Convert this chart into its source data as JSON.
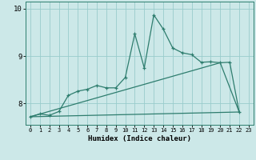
{
  "bg_color": "#cce8e8",
  "grid_color": "#99cccc",
  "line_color": "#2e7d6e",
  "xlim": [
    -0.5,
    23.5
  ],
  "ylim": [
    7.55,
    10.15
  ],
  "xticks": [
    0,
    1,
    2,
    3,
    4,
    5,
    6,
    7,
    8,
    9,
    10,
    11,
    12,
    13,
    14,
    15,
    16,
    17,
    18,
    19,
    20,
    21,
    22,
    23
  ],
  "yticks": [
    8,
    9,
    10
  ],
  "xlabel": "Humidex (Indice chaleur)",
  "line1_x": [
    0,
    1,
    2,
    3,
    4,
    5,
    6,
    7,
    8,
    9,
    10,
    11,
    12,
    13,
    14,
    15,
    16,
    17,
    18,
    19,
    20,
    21,
    22
  ],
  "line1_y": [
    7.72,
    7.78,
    7.75,
    7.83,
    8.17,
    8.26,
    8.3,
    8.38,
    8.33,
    8.33,
    8.55,
    9.47,
    8.75,
    9.87,
    9.57,
    9.17,
    9.07,
    9.03,
    8.87,
    8.88,
    8.86,
    8.87,
    7.82
  ],
  "line2_x": [
    0,
    22
  ],
  "line2_y": [
    7.72,
    7.82
  ],
  "line3_x": [
    0,
    20,
    22
  ],
  "line3_y": [
    7.72,
    8.86,
    7.82
  ]
}
